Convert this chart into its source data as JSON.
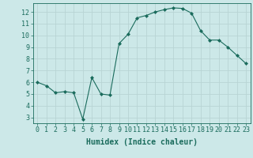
{
  "x": [
    0,
    1,
    2,
    3,
    4,
    5,
    6,
    7,
    8,
    9,
    10,
    11,
    12,
    13,
    14,
    15,
    16,
    17,
    18,
    19,
    20,
    21,
    22,
    23
  ],
  "y": [
    6.0,
    5.7,
    5.1,
    5.2,
    5.1,
    2.85,
    6.4,
    5.0,
    4.9,
    9.3,
    10.1,
    11.5,
    11.7,
    12.0,
    12.2,
    12.35,
    12.3,
    11.9,
    10.4,
    9.6,
    9.6,
    9.0,
    8.3,
    7.6
  ],
  "line_color": "#1a6b5c",
  "marker": "D",
  "marker_size": 2.0,
  "background_color": "#cce8e8",
  "grid_color": "#b8d4d4",
  "tick_color": "#1a6b5c",
  "xlabel": "Humidex (Indice chaleur)",
  "xlabel_fontsize": 7,
  "tick_fontsize": 6,
  "xlim": [
    -0.5,
    23.5
  ],
  "ylim": [
    2.5,
    12.75
  ],
  "yticks": [
    3,
    4,
    5,
    6,
    7,
    8,
    9,
    10,
    11,
    12
  ],
  "xticks": [
    0,
    1,
    2,
    3,
    4,
    5,
    6,
    7,
    8,
    9,
    10,
    11,
    12,
    13,
    14,
    15,
    16,
    17,
    18,
    19,
    20,
    21,
    22,
    23
  ]
}
